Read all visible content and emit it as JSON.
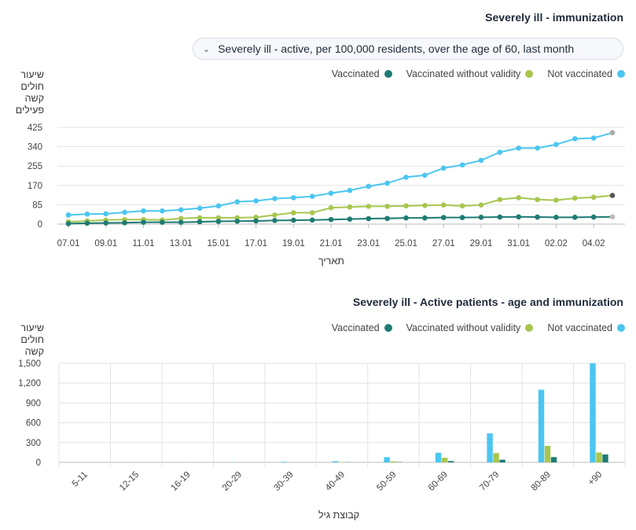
{
  "chart1": {
    "title": "Severely ill - immunization",
    "dropdown_value": "Severely ill - active, per 100,000 residents, over the age of 60, last month",
    "ylabel": "שיעור חולים קשה פעילים",
    "xlabel": "תאריך",
    "legend": {
      "vaccinated": "Vaccinated",
      "without_validity": "Vaccinated without validity",
      "not_vaccinated": "Not vaccinated"
    },
    "colors": {
      "vaccinated": "#1e7b73",
      "without_validity": "#a8c64f",
      "not_vaccinated": "#4bc6f0"
    }
  },
  "chart2": {
    "title": "Severely ill - Active patients - age and immunization",
    "ylabel": "שיעור חולים קשה",
    "xlabel": "קבוצת גיל",
    "legend": {
      "vaccinated": "Vaccinated",
      "without_validity": "Vaccinated without validity",
      "not_vaccinated": "Not vaccinated"
    }
  },
  "chart_data": [
    {
      "type": "line",
      "title": "Severely ill - immunization",
      "ylabel": "שיעור חולים קשה פעילים",
      "xlabel": "תאריך",
      "ylim": [
        0,
        425
      ],
      "yticks": [
        0,
        85,
        170,
        255,
        340,
        425
      ],
      "x": [
        "07.01",
        "08.01",
        "09.01",
        "10.01",
        "11.01",
        "12.01",
        "13.01",
        "14.01",
        "15.01",
        "16.01",
        "17.01",
        "18.01",
        "19.01",
        "20.01",
        "21.01",
        "22.01",
        "23.01",
        "24.01",
        "25.01",
        "26.01",
        "27.01",
        "28.01",
        "29.01",
        "30.01",
        "31.01",
        "01.02",
        "02.02",
        "03.02",
        "04.02",
        "05.02"
      ],
      "xtick_labels": [
        "07.01",
        "09.01",
        "11.01",
        "13.01",
        "15.01",
        "17.01",
        "19.01",
        "21.01",
        "23.01",
        "25.01",
        "27.01",
        "29.01",
        "31.01",
        "02.02",
        "04.02"
      ],
      "series": [
        {
          "name": "Not vaccinated",
          "values": [
            40,
            44,
            45,
            52,
            58,
            58,
            63,
            70,
            80,
            98,
            102,
            112,
            116,
            122,
            136,
            148,
            166,
            180,
            206,
            215,
            246,
            260,
            280,
            316,
            334,
            334,
            350,
            375,
            378,
            402
          ]
        },
        {
          "name": "Vaccinated without validity",
          "values": [
            10,
            14,
            18,
            20,
            20,
            18,
            25,
            28,
            28,
            28,
            30,
            40,
            50,
            50,
            72,
            75,
            78,
            78,
            80,
            82,
            84,
            80,
            84,
            108,
            116,
            108,
            105,
            114,
            118,
            126
          ]
        },
        {
          "name": "Vaccinated",
          "values": [
            2,
            4,
            5,
            6,
            8,
            8,
            8,
            10,
            12,
            13,
            14,
            16,
            17,
            18,
            20,
            22,
            24,
            25,
            27,
            27,
            29,
            29,
            30,
            31,
            32,
            31,
            30,
            30,
            31,
            32
          ]
        }
      ],
      "grid": true,
      "legend_position": "top-right"
    },
    {
      "type": "bar",
      "title": "Severely ill - Active patients - age and immunization",
      "ylabel": "שיעור חולים קשה",
      "xlabel": "קבוצת גיל",
      "ylim": [
        0,
        1500
      ],
      "yticks": [
        "0",
        "300",
        "600",
        "900",
        "1,200",
        "1,500"
      ],
      "ytick_values": [
        0,
        300,
        600,
        900,
        1200,
        1500
      ],
      "categories": [
        "5-11",
        "12-15",
        "16-19",
        "20-29",
        "30-39",
        "40-49",
        "50-59",
        "60-69",
        "70-79",
        "80-89",
        "+90"
      ],
      "series": [
        {
          "name": "Not vaccinated",
          "values": [
            0,
            0,
            2,
            4,
            8,
            18,
            80,
            145,
            440,
            1100,
            1500
          ]
        },
        {
          "name": "Vaccinated without validity",
          "values": [
            0,
            0,
            0,
            1,
            2,
            5,
            15,
            70,
            140,
            250,
            150
          ]
        },
        {
          "name": "Vaccinated",
          "values": [
            0,
            0,
            0,
            0,
            1,
            2,
            5,
            20,
            40,
            80,
            120
          ]
        }
      ],
      "grid": true,
      "legend_position": "top-right"
    }
  ]
}
